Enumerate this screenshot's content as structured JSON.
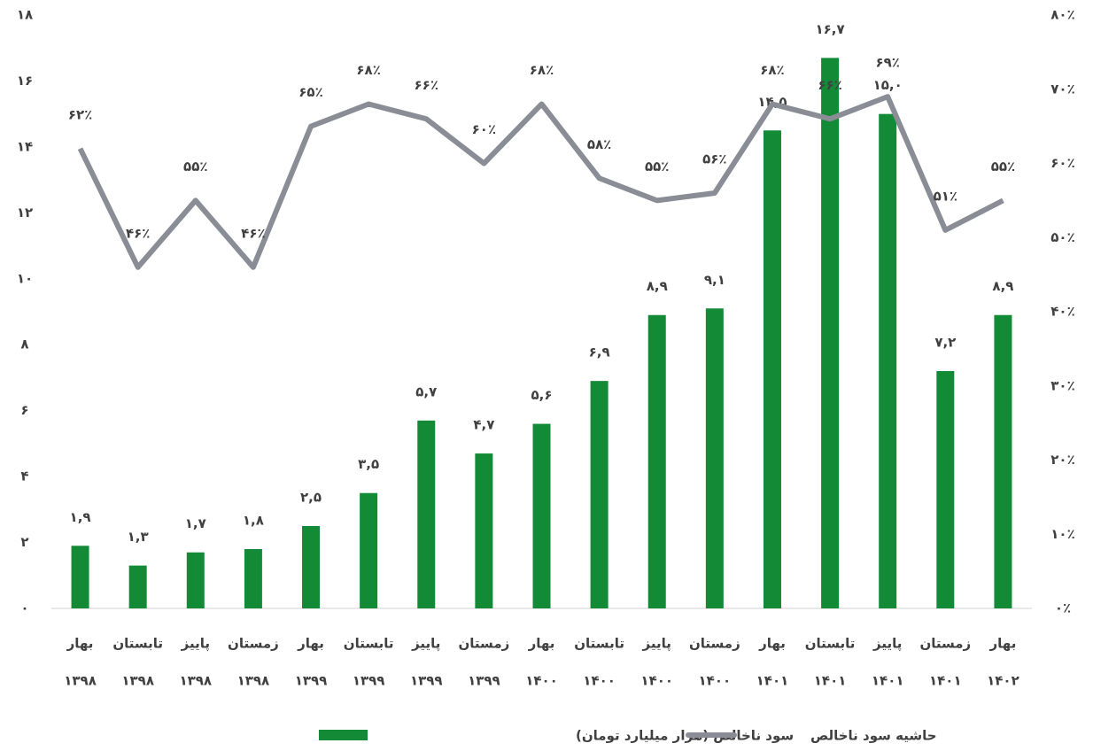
{
  "chart_data": {
    "type": "bar-line",
    "categories": [
      [
        "بهار",
        "۱۳۹۸"
      ],
      [
        "تابستان",
        "۱۳۹۸"
      ],
      [
        "پاییز",
        "۱۳۹۸"
      ],
      [
        "زمستان",
        "۱۳۹۸"
      ],
      [
        "بهار",
        "۱۳۹۹"
      ],
      [
        "تابستان",
        "۱۳۹۹"
      ],
      [
        "پاییز",
        "۱۳۹۹"
      ],
      [
        "زمستان",
        "۱۳۹۹"
      ],
      [
        "بهار",
        "۱۴۰۰"
      ],
      [
        "تابستان",
        "۱۴۰۰"
      ],
      [
        "پاییز",
        "۱۴۰۰"
      ],
      [
        "زمستان",
        "۱۴۰۰"
      ],
      [
        "بهار",
        "۱۴۰۱"
      ],
      [
        "تابستان",
        "۱۴۰۱"
      ],
      [
        "پاییز",
        "۱۴۰۱"
      ],
      [
        "زمستان",
        "۱۴۰۱"
      ],
      [
        "بهار",
        "۱۴۰۲"
      ]
    ],
    "series": [
      {
        "name": "سود ناخالص (هزار میلیارد تومان)",
        "type": "bar",
        "color": "#138a36",
        "values": [
          1.9,
          1.3,
          1.7,
          1.8,
          2.5,
          3.5,
          5.7,
          4.7,
          5.6,
          6.9,
          8.9,
          9.1,
          14.5,
          16.7,
          15.0,
          7.2,
          8.9
        ],
        "value_labels": [
          "۱,۹",
          "۱,۳",
          "۱,۷",
          "۱,۸",
          "۲,۵",
          "۳,۵",
          "۵,۷",
          "۴,۷",
          "۵,۶",
          "۶,۹",
          "۸,۹",
          "۹,۱",
          "۱۴,۵",
          "۱۶,۷",
          "۱۵,۰",
          "۷,۲",
          "۸,۹"
        ]
      },
      {
        "name": "حاشیه سود ناخالص",
        "type": "line",
        "axis": "y2",
        "color": "#8a8d96",
        "values": [
          62,
          46,
          55,
          46,
          65,
          68,
          66,
          60,
          68,
          58,
          55,
          56,
          68,
          66,
          69,
          51,
          55
        ],
        "value_labels": [
          "۶۲٪",
          "۴۶٪",
          "۵۵٪",
          "۴۶٪",
          "۶۵٪",
          "۶۸٪",
          "۶۶٪",
          "۶۰٪",
          "۶۸٪",
          "۵۸٪",
          "۵۵٪",
          "۵۶٪",
          "۶۸٪",
          "۶۶٪",
          "۶۹٪",
          "۵۱٪",
          "۵۵٪"
        ]
      }
    ],
    "ylim": [
      0,
      18
    ],
    "yticks": [
      {
        "value": 0,
        "label": "۰"
      },
      {
        "value": 2,
        "label": "۲"
      },
      {
        "value": 4,
        "label": "۴"
      },
      {
        "value": 6,
        "label": "۶"
      },
      {
        "value": 8,
        "label": "۸"
      },
      {
        "value": 10,
        "label": "۱۰"
      },
      {
        "value": 12,
        "label": "۱۲"
      },
      {
        "value": 14,
        "label": "۱۴"
      },
      {
        "value": 16,
        "label": "۱۶"
      },
      {
        "value": 18,
        "label": "۱۸"
      }
    ],
    "y2lim": [
      0,
      80
    ],
    "y2ticks": [
      {
        "value": 0,
        "label": "۰٪"
      },
      {
        "value": 10,
        "label": "۱۰٪"
      },
      {
        "value": 20,
        "label": "۲۰٪"
      },
      {
        "value": 30,
        "label": "۳۰٪"
      },
      {
        "value": 40,
        "label": "۴۰٪"
      },
      {
        "value": 50,
        "label": "۵۰٪"
      },
      {
        "value": 60,
        "label": "۶۰٪"
      },
      {
        "value": 70,
        "label": "۷۰٪"
      },
      {
        "value": 80,
        "label": "۸۰٪"
      }
    ],
    "value_label_colors": {
      "bar": "#404040",
      "line": "#c00000"
    },
    "legend": "bottom"
  }
}
